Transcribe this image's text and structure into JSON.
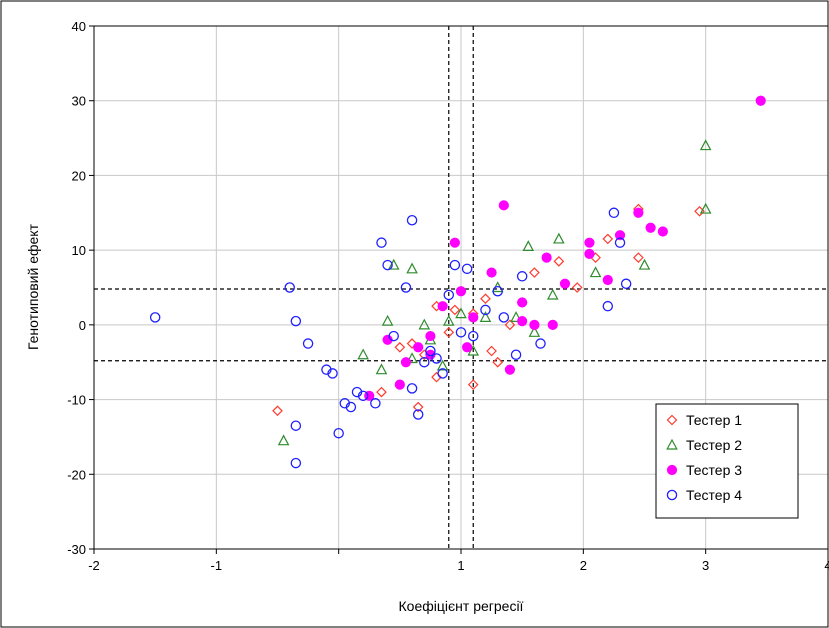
{
  "chart_data": {
    "type": "scatter",
    "title": "",
    "xlabel": "Коефіцієнт регресії",
    "ylabel": "Генотиповий ефект",
    "xlim": [
      -2,
      4
    ],
    "ylim": [
      -30,
      40
    ],
    "x_ticks": [
      -2,
      -1,
      0,
      1,
      2,
      3,
      4
    ],
    "y_ticks": [
      -30,
      -20,
      -10,
      0,
      10,
      20,
      30,
      40
    ],
    "x_tick_labels": [
      "-2",
      "-1",
      "",
      "1",
      "2",
      "3",
      "4"
    ],
    "y_tick_labels": [
      "-30",
      "-20",
      "-10",
      "0",
      "10",
      "20",
      "30",
      "40"
    ],
    "grid": true,
    "legend_position": "bottom-right",
    "reference_lines": {
      "vertical": [
        0.9,
        1.1
      ],
      "horizontal": [
        -4.8,
        4.8
      ]
    },
    "series": [
      {
        "name": "Тестер 1",
        "marker": "diamond",
        "color": "#ff3b30",
        "points": [
          [
            -0.5,
            -11.5
          ],
          [
            0.5,
            -3
          ],
          [
            0.6,
            -2.5
          ],
          [
            0.7,
            -4
          ],
          [
            0.8,
            -7
          ],
          [
            0.8,
            2.5
          ],
          [
            0.9,
            -1
          ],
          [
            0.95,
            2
          ],
          [
            1.1,
            -8
          ],
          [
            1.2,
            3.5
          ],
          [
            1.3,
            -5
          ],
          [
            1.4,
            0
          ],
          [
            1.5,
            3
          ],
          [
            1.6,
            7
          ],
          [
            1.8,
            8.5
          ],
          [
            1.95,
            5
          ],
          [
            2.1,
            9
          ],
          [
            2.2,
            11.5
          ],
          [
            2.45,
            15.5
          ],
          [
            2.45,
            9
          ],
          [
            2.95,
            15.2
          ],
          [
            1.1,
            1.5
          ],
          [
            0.65,
            -11
          ],
          [
            1.25,
            -3.5
          ],
          [
            0.35,
            -9
          ]
        ]
      },
      {
        "name": "Тестер 2",
        "marker": "triangle",
        "color": "#2e8b2e",
        "points": [
          [
            -0.45,
            -15.5
          ],
          [
            0.2,
            -4
          ],
          [
            0.35,
            -6
          ],
          [
            0.4,
            0.5
          ],
          [
            0.45,
            8
          ],
          [
            0.6,
            7.5
          ],
          [
            0.6,
            -4.5
          ],
          [
            0.7,
            0
          ],
          [
            0.75,
            -2
          ],
          [
            0.85,
            -5.5
          ],
          [
            1.0,
            1.5
          ],
          [
            1.1,
            -3.5
          ],
          [
            1.2,
            1
          ],
          [
            1.3,
            5
          ],
          [
            1.45,
            1
          ],
          [
            1.55,
            10.5
          ],
          [
            1.6,
            -1
          ],
          [
            1.75,
            4
          ],
          [
            1.8,
            11.5
          ],
          [
            2.1,
            7
          ],
          [
            2.5,
            8
          ],
          [
            3.0,
            24
          ],
          [
            3.0,
            15.5
          ],
          [
            0.9,
            0.5
          ]
        ]
      },
      {
        "name": "Тестер 3",
        "marker": "filled-circle",
        "color": "#ff00ff",
        "points": [
          [
            0.25,
            -9.5
          ],
          [
            0.4,
            -2
          ],
          [
            0.5,
            -8
          ],
          [
            0.55,
            -5
          ],
          [
            0.65,
            -3
          ],
          [
            0.75,
            -4
          ],
          [
            0.85,
            2.5
          ],
          [
            0.95,
            11
          ],
          [
            1.0,
            4.5
          ],
          [
            1.05,
            -3
          ],
          [
            1.1,
            1
          ],
          [
            1.25,
            7
          ],
          [
            1.35,
            16
          ],
          [
            1.4,
            -6
          ],
          [
            1.5,
            3
          ],
          [
            1.6,
            0
          ],
          [
            1.7,
            9
          ],
          [
            1.75,
            0
          ],
          [
            1.85,
            5.5
          ],
          [
            2.05,
            11
          ],
          [
            2.05,
            9.5
          ],
          [
            2.2,
            6
          ],
          [
            2.3,
            12
          ],
          [
            2.45,
            15
          ],
          [
            2.55,
            13
          ],
          [
            2.65,
            12.5
          ],
          [
            3.45,
            30
          ],
          [
            1.5,
            0.5
          ],
          [
            0.75,
            -1.5
          ]
        ]
      },
      {
        "name": "Тестер 4",
        "marker": "circle",
        "color": "#1f1fff",
        "points": [
          [
            -1.5,
            1
          ],
          [
            -0.4,
            5
          ],
          [
            -0.35,
            0.5
          ],
          [
            -0.35,
            -13.5
          ],
          [
            -0.35,
            -18.5
          ],
          [
            -0.25,
            -2.5
          ],
          [
            -0.1,
            -6
          ],
          [
            -0.05,
            -6.5
          ],
          [
            0.0,
            -14.5
          ],
          [
            0.05,
            -10.5
          ],
          [
            0.1,
            -11
          ],
          [
            0.15,
            -9
          ],
          [
            0.2,
            -9.5
          ],
          [
            0.3,
            -10.5
          ],
          [
            0.35,
            11
          ],
          [
            0.4,
            8
          ],
          [
            0.45,
            -1.5
          ],
          [
            0.55,
            5
          ],
          [
            0.6,
            14
          ],
          [
            0.65,
            -12
          ],
          [
            0.7,
            -5
          ],
          [
            0.75,
            -3.5
          ],
          [
            0.8,
            -4.5
          ],
          [
            0.9,
            4
          ],
          [
            0.95,
            8
          ],
          [
            1.0,
            -1
          ],
          [
            1.05,
            7.5
          ],
          [
            1.1,
            -1.5
          ],
          [
            1.2,
            2
          ],
          [
            1.3,
            4.5
          ],
          [
            1.35,
            1
          ],
          [
            1.45,
            -4
          ],
          [
            1.5,
            6.5
          ],
          [
            1.65,
            -2.5
          ],
          [
            2.25,
            15
          ],
          [
            2.3,
            11
          ],
          [
            2.35,
            5.5
          ],
          [
            2.2,
            2.5
          ],
          [
            0.85,
            -6.5
          ],
          [
            0.6,
            -8.5
          ]
        ]
      }
    ],
    "legend": [
      "Тестер 1",
      "Тестер 2",
      "Тестер 3",
      "Тестер 4"
    ]
  }
}
